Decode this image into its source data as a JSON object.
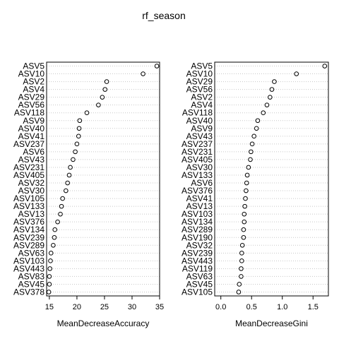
{
  "title": "rf_season",
  "chart_data": [
    {
      "type": "scatter",
      "xlabel": "MeanDecreaseAccuracy",
      "xlim": [
        14.5,
        35
      ],
      "xticks": [
        15,
        20,
        25,
        30,
        35
      ],
      "categories": [
        "ASV5",
        "ASV10",
        "ASV2",
        "ASV4",
        "ASV29",
        "ASV56",
        "ASV118",
        "ASV9",
        "ASV40",
        "ASV41",
        "ASV237",
        "ASV6",
        "ASV43",
        "ASV231",
        "ASV405",
        "ASV32",
        "ASV30",
        "ASV105",
        "ASV133",
        "ASV13",
        "ASV376",
        "ASV134",
        "ASV239",
        "ASV289",
        "ASV63",
        "ASV103",
        "ASV443",
        "ASV83",
        "ASV45",
        "ASV378"
      ],
      "values": [
        34.5,
        32.0,
        25.4,
        25.1,
        24.6,
        23.9,
        21.8,
        20.5,
        20.4,
        20.3,
        20.0,
        19.7,
        19.3,
        18.8,
        18.6,
        18.3,
        18.0,
        17.4,
        17.2,
        17.0,
        16.5,
        16.0,
        15.9,
        15.7,
        15.3,
        15.2,
        15.1,
        15.0,
        15.0,
        14.9
      ]
    },
    {
      "type": "scatter",
      "xlabel": "MeanDecreaseGini",
      "xlim": [
        -0.1,
        1.75
      ],
      "xticks": [
        0.0,
        0.5,
        1.0,
        1.5
      ],
      "categories": [
        "ASV5",
        "ASV10",
        "ASV29",
        "ASV56",
        "ASV2",
        "ASV4",
        "ASV118",
        "ASV40",
        "ASV9",
        "ASV43",
        "ASV237",
        "ASV231",
        "ASV405",
        "ASV30",
        "ASV133",
        "ASV6",
        "ASV376",
        "ASV41",
        "ASV13",
        "ASV103",
        "ASV134",
        "ASV289",
        "ASV190",
        "ASV32",
        "ASV239",
        "ASV443",
        "ASV119",
        "ASV63",
        "ASV45",
        "ASV105"
      ],
      "values": [
        1.69,
        1.23,
        0.87,
        0.83,
        0.8,
        0.75,
        0.69,
        0.6,
        0.58,
        0.54,
        0.51,
        0.49,
        0.48,
        0.45,
        0.43,
        0.42,
        0.41,
        0.4,
        0.39,
        0.38,
        0.38,
        0.37,
        0.37,
        0.35,
        0.34,
        0.34,
        0.33,
        0.33,
        0.3,
        0.29
      ]
    }
  ]
}
